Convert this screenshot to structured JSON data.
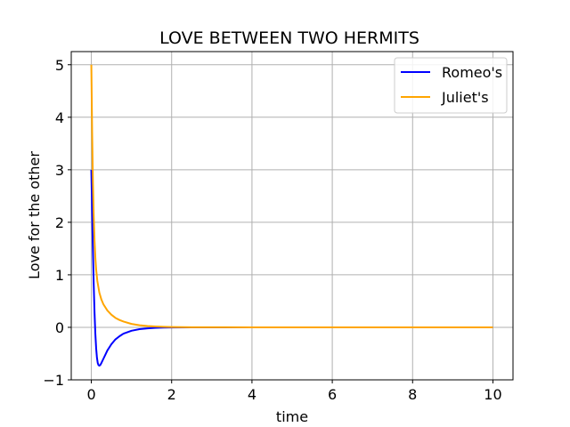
{
  "chart_data": {
    "type": "line",
    "title": "LOVE BETWEEN TWO HERMITS",
    "xlabel": "time",
    "ylabel": "Love for the other",
    "xlim": [
      -0.5,
      10.5
    ],
    "ylim": [
      -1,
      5.25
    ],
    "xticks": [
      0,
      2,
      4,
      6,
      8,
      10
    ],
    "yticks": [
      -1,
      0,
      1,
      2,
      3,
      4,
      5
    ],
    "grid": true,
    "legend_position": "top-right",
    "series": [
      {
        "name": "Romeo's",
        "color": "#0000ff",
        "x": [
          0,
          0.02,
          0.04,
          0.06,
          0.08,
          0.1,
          0.12,
          0.14,
          0.16,
          0.18,
          0.2,
          0.22,
          0.25,
          0.3,
          0.35,
          0.4,
          0.5,
          0.6,
          0.7,
          0.8,
          1.0,
          1.2,
          1.4,
          1.6,
          1.8,
          2.0,
          2.5,
          3.0,
          4.0,
          5.0,
          6.0,
          7.0,
          8.0,
          9.0,
          10.0
        ],
        "y": [
          3.0,
          2.2,
          1.45,
          0.8,
          0.28,
          -0.12,
          -0.4,
          -0.58,
          -0.68,
          -0.72,
          -0.73,
          -0.72,
          -0.68,
          -0.6,
          -0.52,
          -0.44,
          -0.32,
          -0.23,
          -0.17,
          -0.12,
          -0.065,
          -0.035,
          -0.019,
          -0.01,
          -0.006,
          -0.003,
          -0.001,
          0,
          0,
          0,
          0,
          0,
          0,
          0,
          0
        ]
      },
      {
        "name": "Juliet's",
        "color": "#ffa500",
        "x": [
          0,
          0.02,
          0.04,
          0.06,
          0.08,
          0.1,
          0.12,
          0.15,
          0.2,
          0.25,
          0.3,
          0.4,
          0.5,
          0.6,
          0.7,
          0.8,
          1.0,
          1.2,
          1.4,
          1.6,
          1.8,
          2.0,
          2.5,
          3.0,
          4.0,
          5.0,
          6.0,
          7.0,
          8.0,
          9.0,
          10.0
        ],
        "y": [
          5.0,
          3.7,
          2.75,
          2.1,
          1.65,
          1.33,
          1.1,
          0.88,
          0.66,
          0.53,
          0.44,
          0.32,
          0.24,
          0.18,
          0.14,
          0.11,
          0.065,
          0.04,
          0.025,
          0.016,
          0.01,
          0.006,
          0.002,
          0.001,
          0,
          0,
          0,
          0,
          0,
          0,
          0
        ]
      }
    ]
  }
}
